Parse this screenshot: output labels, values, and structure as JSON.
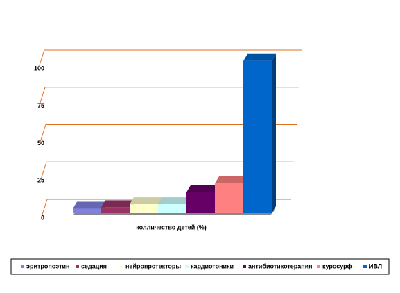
{
  "chart_data": {
    "type": "bar",
    "categories": [
      "колличество детей (%)"
    ],
    "series": [
      {
        "name": "эритропоэтин",
        "color": "#8080e0",
        "values": [
          3
        ]
      },
      {
        "name": "седация",
        "color": "#993366",
        "values": [
          4
        ]
      },
      {
        "name": "нейропротекторы",
        "color": "#ffffcc",
        "values": [
          6
        ]
      },
      {
        "name": "кардиотоники",
        "color": "#ccffff",
        "values": [
          6
        ]
      },
      {
        "name": "антибиотикотерапия",
        "color": "#660066",
        "values": [
          14
        ]
      },
      {
        "name": "куросурф",
        "color": "#ff8080",
        "values": [
          20
        ]
      },
      {
        "name": "ИВЛ",
        "color": "#0066cc",
        "values": [
          102
        ]
      }
    ],
    "ylim": [
      0,
      100
    ],
    "yticks": [
      0,
      25,
      50,
      75,
      100
    ],
    "grid": true,
    "grid_color": "#e07020"
  }
}
